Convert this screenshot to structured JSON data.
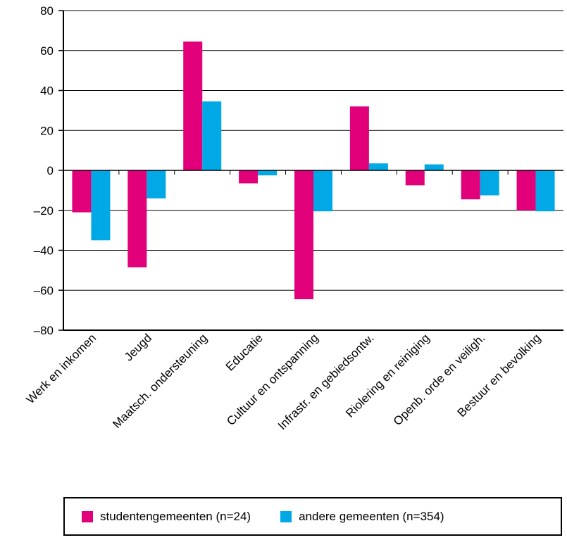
{
  "chart_data": {
    "type": "bar",
    "categories": [
      "Werk en inkomen",
      "Jeugd",
      "Maatsch. ondersteuning",
      "Educatie",
      "Cultuur en ontspanning",
      "Infrastr. en gebiedsontw.",
      "Riolering en reiniging",
      "Openb. orde en veiligh.",
      "Bestuur en bevolking"
    ],
    "series": [
      {
        "name": "studentengemeenten (n=24)",
        "color": "#e2007a",
        "values": [
          -21,
          -48.5,
          64.5,
          -6.5,
          -64.5,
          32,
          -7.5,
          -14.5,
          -20
        ]
      },
      {
        "name": "andere gemeenten (n=354)",
        "color": "#00a9e6",
        "values": [
          -35,
          -14,
          34.5,
          -2.5,
          -20.5,
          3.5,
          3,
          -12.5,
          -20.5
        ]
      }
    ],
    "ylim": [
      -80,
      80
    ],
    "yticks": [
      80,
      60,
      40,
      20,
      0,
      -20,
      -40,
      -60,
      -80
    ],
    "ytick_labels": [
      "80",
      "60",
      "40",
      "20",
      "0",
      "–20",
      "–40",
      "–60",
      "–80"
    ],
    "grid": true,
    "legend_position": "bottom",
    "title": "",
    "xlabel": "",
    "ylabel": ""
  }
}
